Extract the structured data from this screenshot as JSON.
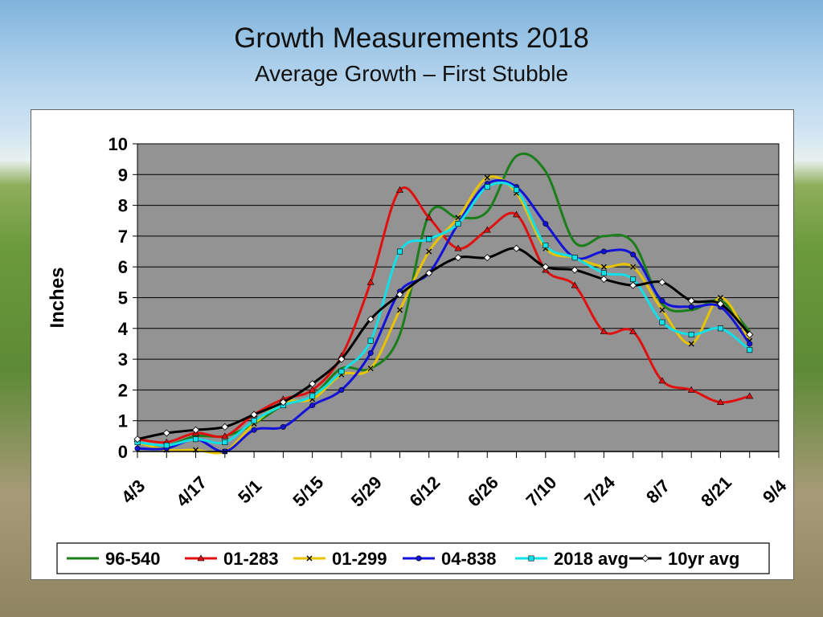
{
  "title": "Growth Measurements 2018",
  "subtitle": "Average Growth – First Stubble",
  "colors": {
    "plot_bg": "#939393",
    "grid": "#000000"
  },
  "chart_data": {
    "type": "line",
    "title": "Growth Measurements 2018",
    "subtitle": "Average Growth – First Stubble",
    "xlabel": "",
    "ylabel": "Inches",
    "ylim": [
      0,
      10
    ],
    "yticks": [
      0,
      1,
      2,
      3,
      4,
      5,
      6,
      7,
      8,
      9,
      10
    ],
    "grid": true,
    "legend": "bottom",
    "x": [
      "4/3",
      "4/10",
      "4/17",
      "4/24",
      "5/1",
      "5/8",
      "5/15",
      "5/22",
      "5/29",
      "6/5",
      "6/12",
      "6/19",
      "6/26",
      "7/3",
      "7/10",
      "7/17",
      "7/24",
      "7/31",
      "8/7",
      "8/14",
      "8/21",
      "8/28",
      "9/4"
    ],
    "xtick_labels": [
      "4/3",
      "4/17",
      "5/1",
      "5/15",
      "5/29",
      "6/12",
      "6/26",
      "7/10",
      "7/24",
      "8/7",
      "8/21",
      "9/4"
    ],
    "series": [
      {
        "name": "96-540",
        "color": "#1a7f1a",
        "marker": "none",
        "values": [
          0.3,
          0.2,
          0.5,
          0.5,
          0.9,
          1.5,
          1.8,
          2.7,
          2.7,
          3.8,
          7.7,
          7.6,
          7.8,
          9.6,
          9.1,
          6.8,
          7.0,
          6.8,
          4.8,
          4.6,
          4.9,
          3.9,
          null
        ]
      },
      {
        "name": "01-283",
        "color": "#e01010",
        "marker": "triangle",
        "values": [
          0.4,
          0.3,
          0.6,
          0.5,
          1.2,
          1.7,
          2.0,
          3.1,
          5.5,
          8.5,
          7.6,
          6.6,
          7.2,
          7.7,
          5.9,
          5.4,
          3.9,
          3.9,
          2.3,
          2.0,
          1.6,
          1.8,
          null
        ]
      },
      {
        "name": "01-299",
        "color": "#e8c400",
        "marker": "x",
        "values": [
          0.3,
          0.05,
          0.05,
          0.0,
          0.9,
          1.6,
          1.7,
          2.5,
          2.7,
          4.6,
          6.5,
          7.6,
          8.9,
          8.4,
          6.6,
          6.3,
          6.0,
          6.0,
          4.6,
          3.5,
          5.0,
          3.6,
          null
        ]
      },
      {
        "name": "04-838",
        "color": "#1212d8",
        "marker": "circle",
        "values": [
          0.1,
          0.1,
          0.4,
          0.0,
          0.7,
          0.8,
          1.5,
          2.0,
          3.2,
          5.2,
          5.8,
          7.4,
          8.7,
          8.6,
          7.4,
          6.3,
          6.5,
          6.4,
          4.9,
          4.7,
          4.7,
          3.5,
          null
        ]
      },
      {
        "name": "2018 avg",
        "color": "#11e0e8",
        "marker": "square",
        "values": [
          0.3,
          0.2,
          0.4,
          0.3,
          1.0,
          1.5,
          1.8,
          2.6,
          3.6,
          6.5,
          6.9,
          7.4,
          8.6,
          8.5,
          6.7,
          6.3,
          5.8,
          5.6,
          4.2,
          3.8,
          4.0,
          3.3,
          null
        ]
      },
      {
        "name": "10yr avg",
        "color": "#000000",
        "marker": "diamond",
        "values": [
          0.4,
          0.6,
          0.7,
          0.8,
          1.2,
          1.6,
          2.2,
          3.0,
          4.3,
          5.1,
          5.8,
          6.3,
          6.3,
          6.6,
          6.0,
          5.9,
          5.6,
          5.4,
          5.5,
          4.9,
          4.8,
          3.8,
          null
        ]
      }
    ]
  }
}
